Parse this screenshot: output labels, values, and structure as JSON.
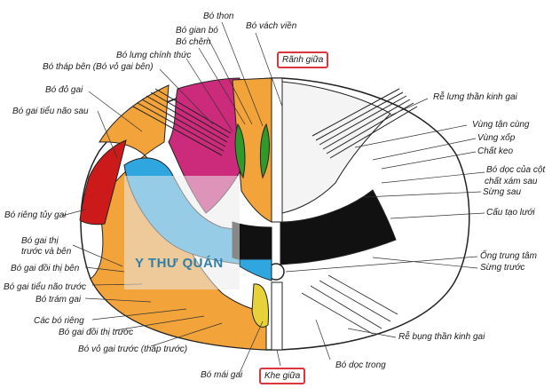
{
  "title_top": "Rãnh giữa",
  "title_bottom": "Khe giữa",
  "watermark": "Y THƯ QUÁN",
  "colors": {
    "magenta": "#cc2a7a",
    "orange": "#f2a33a",
    "red": "#cc1a1a",
    "blue": "#2fa6e0",
    "yellow": "#e8d23a",
    "green": "#2f9a2a",
    "black": "#111111",
    "highlight_border": "#d9363e"
  },
  "labels": {
    "bo_thon": "Bó thon",
    "bo_gian_bo": "Bó gian bó",
    "bo_chem": "Bó chêm",
    "bo_vach_vien": "Bó vách viền",
    "bo_lung_chinh_thuc": "Bó lưng chính thức",
    "bo_thap_ben": "Bó tháp bên (Bó vỏ gai bên)",
    "bo_do_gai": "Bó đỏ gai",
    "bo_gai_tieu_nao_sau": "Bó gai tiểu não sau",
    "re_lung": "Rễ lưng thần kinh gai",
    "vung_tan_cung": "Vùng tận cùng",
    "vung_xop": "Vùng xốp",
    "chat_keo": "Chất keo",
    "bo_doc_cot": "Bó dọc của cột",
    "chat_xam_sau": "chất xám sau",
    "sung_sau": "Sừng sau",
    "cau_tao_luoi": "Cấu tạo lưới",
    "ong_trung_tam": "Ống trung tâm",
    "sung_truoc": "Sừng trước",
    "re_bung": "Rễ bụng thần kinh gai",
    "bo_doc_trong": "Bó dọc trong",
    "bo_rieng_tuy_gai": "Bó riêng tủy gai",
    "bo_gai_thi_1": "Bó gai thị",
    "bo_gai_thi_2": "trước và bên",
    "bo_gai_doi_thi_ben": "Bó gai đồi thị bên",
    "bo_gai_tieu_nao_truoc": "Bó gai tiểu não trước",
    "bo_tram_gai": "Bó trám gai",
    "cac_bo_rieng": "Các bó riêng",
    "bo_gai_doi_thi_truoc": "Bó gai đồi thị trước",
    "bo_vo_gai_truoc": "Bó vỏ gai trước (tháp trước)",
    "bo_mai_gai": "Bó mái gai"
  }
}
